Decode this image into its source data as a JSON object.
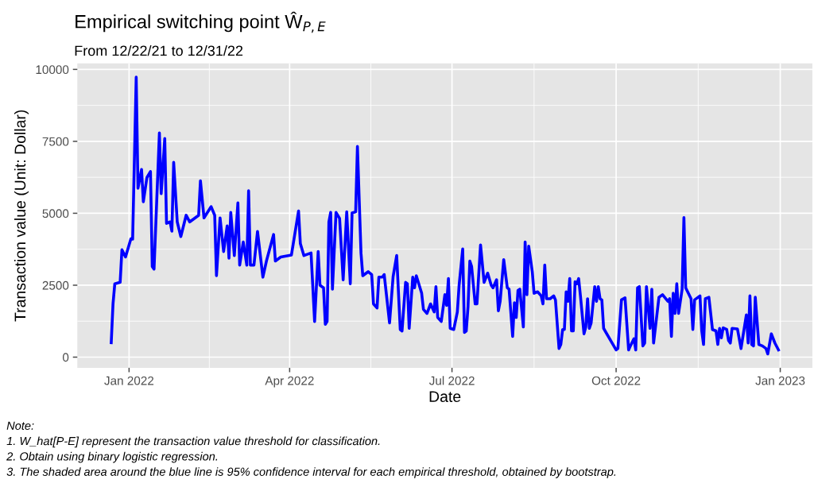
{
  "chart_data": {
    "type": "line",
    "title": "Empirical switching point Ŵ$_{P,E}$",
    "subtitle": "From 12/22/21 to 12/31/22",
    "xlabel": "Date",
    "ylabel": "Transaction value (Unit: Dollar)",
    "annotations": [
      "Note:",
      "1. W_hat[P-E] represent the transaction value threshold for classification.",
      "2. Obtain using binary logistic regression.",
      "3. The shaded area around the blue line is 95% confidence interval for each empirical threshold, obtained by bootstrap."
    ],
    "xlim": [
      "2021-12-03",
      "2023-01-19"
    ],
    "ylim": [
      -370,
      10210
    ],
    "xticks": [
      {
        "value": "2022-01-01",
        "label": "Jan 2022"
      },
      {
        "value": "2022-04-01",
        "label": "Apr 2022"
      },
      {
        "value": "2022-07-01",
        "label": "Jul 2022"
      },
      {
        "value": "2022-10-01",
        "label": "Oct 2022"
      },
      {
        "value": "2023-01-01",
        "label": "Jan 2023"
      }
    ],
    "yticks": [
      0,
      2500,
      5000,
      7500,
      10000
    ],
    "grid": true,
    "legend": false,
    "marker": "none",
    "line_style": "solid",
    "series": [
      {
        "color": "#0000ff",
        "x": [
          "2021-12-22",
          "2021-12-23",
          "2021-12-24",
          "2021-12-27",
          "2021-12-28",
          "2021-12-30",
          "2022-01-02",
          "2022-01-03",
          "2022-01-05",
          "2022-01-06",
          "2022-01-08",
          "2022-01-09",
          "2022-01-11",
          "2022-01-13",
          "2022-01-14",
          "2022-01-15",
          "2022-01-18",
          "2022-01-19",
          "2022-01-21",
          "2022-01-22",
          "2022-01-24",
          "2022-01-25",
          "2022-01-26",
          "2022-01-28",
          "2022-01-30",
          "2022-02-02",
          "2022-02-04",
          "2022-02-09",
          "2022-02-10",
          "2022-02-12",
          "2022-02-16",
          "2022-02-18",
          "2022-02-19",
          "2022-02-21",
          "2022-02-23",
          "2022-02-25",
          "2022-02-26",
          "2022-02-27",
          "2022-03-01",
          "2022-03-03",
          "2022-03-04",
          "2022-03-06",
          "2022-03-08",
          "2022-03-09",
          "2022-03-10",
          "2022-03-12",
          "2022-03-14",
          "2022-03-17",
          "2022-03-19",
          "2022-03-23",
          "2022-03-24",
          "2022-03-27",
          "2022-04-02",
          "2022-04-06",
          "2022-04-07",
          "2022-04-09",
          "2022-04-13",
          "2022-04-15",
          "2022-04-17",
          "2022-04-18",
          "2022-04-20",
          "2022-04-21",
          "2022-04-22",
          "2022-04-23",
          "2022-04-24",
          "2022-04-25",
          "2022-04-27",
          "2022-04-29",
          "2022-05-01",
          "2022-05-03",
          "2022-05-05",
          "2022-05-06",
          "2022-05-08",
          "2022-05-09",
          "2022-05-11",
          "2022-05-12",
          "2022-05-15",
          "2022-05-17",
          "2022-05-18",
          "2022-05-20",
          "2022-05-21",
          "2022-05-23",
          "2022-05-24",
          "2022-05-27",
          "2022-05-29",
          "2022-05-31",
          "2022-06-02",
          "2022-06-03",
          "2022-06-05",
          "2022-06-06",
          "2022-06-07",
          "2022-06-09",
          "2022-06-10",
          "2022-06-11",
          "2022-06-14",
          "2022-06-15",
          "2022-06-17",
          "2022-06-19",
          "2022-06-21",
          "2022-06-22",
          "2022-06-23",
          "2022-06-25",
          "2022-06-27",
          "2022-06-28",
          "2022-06-29",
          "2022-06-30",
          "2022-07-02",
          "2022-07-04",
          "2022-07-05",
          "2022-07-07",
          "2022-07-08",
          "2022-07-09",
          "2022-07-10",
          "2022-07-11",
          "2022-07-12",
          "2022-07-14",
          "2022-07-15",
          "2022-07-17",
          "2022-07-19",
          "2022-07-21",
          "2022-07-23",
          "2022-07-24",
          "2022-07-26",
          "2022-07-27",
          "2022-07-28",
          "2022-07-30",
          "2022-08-01",
          "2022-08-02",
          "2022-08-04",
          "2022-08-05",
          "2022-08-06",
          "2022-08-07",
          "2022-08-08",
          "2022-08-10",
          "2022-08-11",
          "2022-08-12",
          "2022-08-13",
          "2022-08-15",
          "2022-08-16",
          "2022-08-18",
          "2022-08-20",
          "2022-08-21",
          "2022-08-22",
          "2022-08-23",
          "2022-08-25",
          "2022-08-27",
          "2022-08-28",
          "2022-08-30",
          "2022-08-31",
          "2022-09-01",
          "2022-09-02",
          "2022-09-03",
          "2022-09-04",
          "2022-09-05",
          "2022-09-06",
          "2022-09-07",
          "2022-09-08",
          "2022-09-09",
          "2022-09-10",
          "2022-09-11",
          "2022-09-13",
          "2022-09-14",
          "2022-09-15",
          "2022-09-16",
          "2022-09-17",
          "2022-09-19",
          "2022-09-20",
          "2022-09-21",
          "2022-09-22",
          "2022-09-23",
          "2022-09-24",
          "2022-10-01",
          "2022-10-02",
          "2022-10-04",
          "2022-10-06",
          "2022-10-08",
          "2022-10-09",
          "2022-10-11",
          "2022-10-12",
          "2022-10-13",
          "2022-10-14",
          "2022-10-16",
          "2022-10-17",
          "2022-10-18",
          "2022-10-20",
          "2022-10-21",
          "2022-10-22",
          "2022-10-25",
          "2022-10-27",
          "2022-10-30",
          "2022-10-31",
          "2022-11-01",
          "2022-11-02",
          "2022-11-03",
          "2022-11-04",
          "2022-11-05",
          "2022-11-07",
          "2022-11-08",
          "2022-11-09",
          "2022-11-12",
          "2022-11-13",
          "2022-11-14",
          "2022-11-17",
          "2022-11-18",
          "2022-11-19",
          "2022-11-20",
          "2022-11-22",
          "2022-11-24",
          "2022-11-26",
          "2022-11-27",
          "2022-11-28",
          "2022-11-29",
          "2022-11-30",
          "2022-12-02",
          "2022-12-03",
          "2022-12-04",
          "2022-12-05",
          "2022-12-08",
          "2022-12-10",
          "2022-12-13",
          "2022-12-14",
          "2022-12-15",
          "2022-12-16",
          "2022-12-17",
          "2022-12-18",
          "2022-12-20",
          "2022-12-22",
          "2022-12-24",
          "2022-12-25",
          "2022-12-27",
          "2022-12-29",
          "2022-12-31"
        ],
        "values": [
          500,
          1850,
          2550,
          2600,
          3730,
          3480,
          4110,
          4100,
          9730,
          5870,
          6520,
          5400,
          6240,
          6450,
          3150,
          3060,
          7790,
          5680,
          7600,
          4650,
          4700,
          4380,
          6770,
          4700,
          4190,
          4930,
          4700,
          4930,
          6130,
          4840,
          5230,
          4930,
          2830,
          4840,
          3670,
          4560,
          3440,
          5030,
          3530,
          5360,
          3200,
          4000,
          3200,
          5780,
          3200,
          3200,
          4370,
          2780,
          3340,
          4260,
          3340,
          3480,
          3550,
          5080,
          3950,
          3530,
          3620,
          1240,
          3670,
          2500,
          2410,
          1140,
          1240,
          4700,
          5030,
          2360,
          5030,
          4820,
          2690,
          5050,
          2550,
          5010,
          5050,
          7320,
          3620,
          2830,
          2970,
          2870,
          1850,
          1710,
          2780,
          2780,
          2870,
          1190,
          2800,
          3530,
          960,
          910,
          2600,
          2550,
          1000,
          2780,
          2410,
          2830,
          2220,
          1660,
          1520,
          1850,
          1570,
          2450,
          1380,
          1240,
          2170,
          1800,
          2730,
          1000,
          960,
          1570,
          2500,
          3760,
          860,
          910,
          1760,
          3340,
          3150,
          1850,
          1850,
          3900,
          2600,
          2920,
          2500,
          2410,
          2690,
          1610,
          1940,
          3390,
          2410,
          2360,
          720,
          1890,
          1380,
          2320,
          2360,
          1050,
          4000,
          2170,
          3860,
          2970,
          2220,
          2270,
          2130,
          1850,
          3200,
          2030,
          2030,
          2130,
          1990,
          300,
          440,
          960,
          960,
          2270,
          1940,
          2730,
          910,
          910,
          2620,
          2550,
          2730,
          2130,
          810,
          1050,
          2030,
          1000,
          1190,
          2450,
          1940,
          2450,
          2030,
          1990,
          1000,
          250,
          300,
          1990,
          2060,
          250,
          390,
          640,
          250,
          2410,
          2450,
          390,
          490,
          2450,
          1000,
          2360,
          490,
          2080,
          2170,
          1940,
          2030,
          720,
          2220,
          1520,
          2550,
          1520,
          2360,
          4850,
          2410,
          2030,
          960,
          1990,
          2130,
          910,
          440,
          2030,
          2080,
          960,
          910,
          440,
          1000,
          670,
          1020,
          960,
          580,
          490,
          1000,
          980,
          300,
          1470,
          490,
          2130,
          440,
          390,
          2080,
          440,
          390,
          300,
          110,
          810,
          490,
          250
        ]
      }
    ]
  }
}
